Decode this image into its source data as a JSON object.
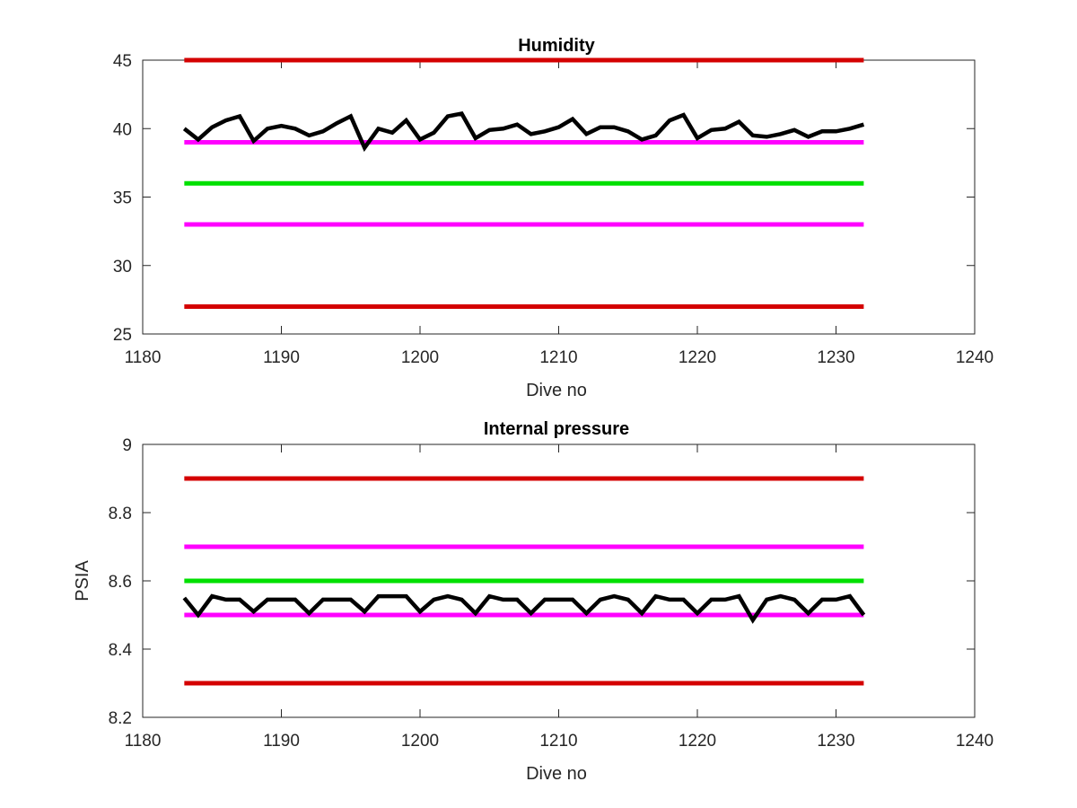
{
  "chart_data": [
    {
      "type": "line",
      "title": "Humidity",
      "xlabel": "Dive no",
      "ylabel": "",
      "xlim": [
        1180,
        1240
      ],
      "ylim": [
        25,
        45
      ],
      "xticks": [
        1180,
        1190,
        1200,
        1210,
        1220,
        1230,
        1240
      ],
      "yticks": [
        25,
        30,
        35,
        40,
        45
      ],
      "xtick_labels": [
        "1180",
        "1190",
        "1200",
        "1210",
        "1220",
        "1230",
        "1240"
      ],
      "ytick_labels": [
        "25",
        "30",
        "35",
        "40",
        "45"
      ],
      "grid": false,
      "legend": "none",
      "reference_lines": [
        {
          "y": 45,
          "x": [
            1183,
            1232
          ],
          "color": "#d40000"
        },
        {
          "y": 39,
          "x": [
            1183,
            1232
          ],
          "color": "#ff00ff"
        },
        {
          "y": 36,
          "x": [
            1183,
            1232
          ],
          "color": "#00e000"
        },
        {
          "y": 33,
          "x": [
            1183,
            1232
          ],
          "color": "#ff00ff"
        },
        {
          "y": 27,
          "x": [
            1183,
            1232
          ],
          "color": "#d40000"
        }
      ],
      "series": [
        {
          "color": "#000000",
          "x": [
            1183,
            1184,
            1185,
            1186,
            1187,
            1188,
            1189,
            1190,
            1191,
            1192,
            1193,
            1194,
            1195,
            1196,
            1197,
            1198,
            1199,
            1200,
            1201,
            1202,
            1203,
            1204,
            1205,
            1206,
            1207,
            1208,
            1209,
            1210,
            1211,
            1212,
            1213,
            1214,
            1215,
            1216,
            1217,
            1218,
            1219,
            1220,
            1221,
            1222,
            1223,
            1224,
            1225,
            1226,
            1227,
            1228,
            1229,
            1230,
            1231,
            1232
          ],
          "values": [
            40.0,
            39.2,
            40.1,
            40.6,
            40.9,
            39.1,
            40.0,
            40.2,
            40.0,
            39.5,
            39.8,
            40.4,
            40.9,
            38.6,
            40.0,
            39.7,
            40.6,
            39.2,
            39.7,
            40.9,
            41.1,
            39.3,
            39.9,
            40.0,
            40.3,
            39.6,
            39.8,
            40.1,
            40.7,
            39.6,
            40.1,
            40.1,
            39.8,
            39.2,
            39.5,
            40.6,
            41.0,
            39.3,
            39.9,
            40.0,
            40.5,
            39.5,
            39.4,
            39.6,
            39.9,
            39.4,
            39.8,
            39.8,
            40.0,
            40.3
          ]
        }
      ]
    },
    {
      "type": "line",
      "title": "Internal pressure",
      "xlabel": "Dive no",
      "ylabel": "PSIA",
      "xlim": [
        1180,
        1240
      ],
      "ylim": [
        8.2,
        9.0
      ],
      "xticks": [
        1180,
        1190,
        1200,
        1210,
        1220,
        1230,
        1240
      ],
      "yticks": [
        8.2,
        8.4,
        8.6,
        8.8,
        9.0
      ],
      "xtick_labels": [
        "1180",
        "1190",
        "1200",
        "1210",
        "1220",
        "1230",
        "1240"
      ],
      "ytick_labels": [
        "8.2",
        "8.4",
        "8.6",
        "8.8",
        "9"
      ],
      "grid": false,
      "legend": "none",
      "reference_lines": [
        {
          "y": 8.9,
          "x": [
            1183,
            1232
          ],
          "color": "#d40000"
        },
        {
          "y": 8.7,
          "x": [
            1183,
            1232
          ],
          "color": "#ff00ff"
        },
        {
          "y": 8.6,
          "x": [
            1183,
            1232
          ],
          "color": "#00e000"
        },
        {
          "y": 8.5,
          "x": [
            1183,
            1232
          ],
          "color": "#ff00ff"
        },
        {
          "y": 8.3,
          "x": [
            1183,
            1232
          ],
          "color": "#d40000"
        }
      ],
      "series": [
        {
          "color": "#000000",
          "x": [
            1183,
            1184,
            1185,
            1186,
            1187,
            1188,
            1189,
            1190,
            1191,
            1192,
            1193,
            1194,
            1195,
            1196,
            1197,
            1198,
            1199,
            1200,
            1201,
            1202,
            1203,
            1204,
            1205,
            1206,
            1207,
            1208,
            1209,
            1210,
            1211,
            1212,
            1213,
            1214,
            1215,
            1216,
            1217,
            1218,
            1219,
            1220,
            1221,
            1222,
            1223,
            1224,
            1225,
            1226,
            1227,
            1228,
            1229,
            1230,
            1231,
            1232
          ],
          "values": [
            8.55,
            8.5,
            8.555,
            8.545,
            8.545,
            8.51,
            8.545,
            8.545,
            8.545,
            8.505,
            8.545,
            8.545,
            8.545,
            8.51,
            8.555,
            8.555,
            8.555,
            8.51,
            8.545,
            8.555,
            8.545,
            8.505,
            8.555,
            8.545,
            8.545,
            8.505,
            8.545,
            8.545,
            8.545,
            8.505,
            8.545,
            8.555,
            8.545,
            8.505,
            8.555,
            8.545,
            8.545,
            8.505,
            8.545,
            8.545,
            8.555,
            8.485,
            8.545,
            8.555,
            8.545,
            8.505,
            8.545,
            8.545,
            8.555,
            8.5
          ]
        }
      ]
    }
  ]
}
